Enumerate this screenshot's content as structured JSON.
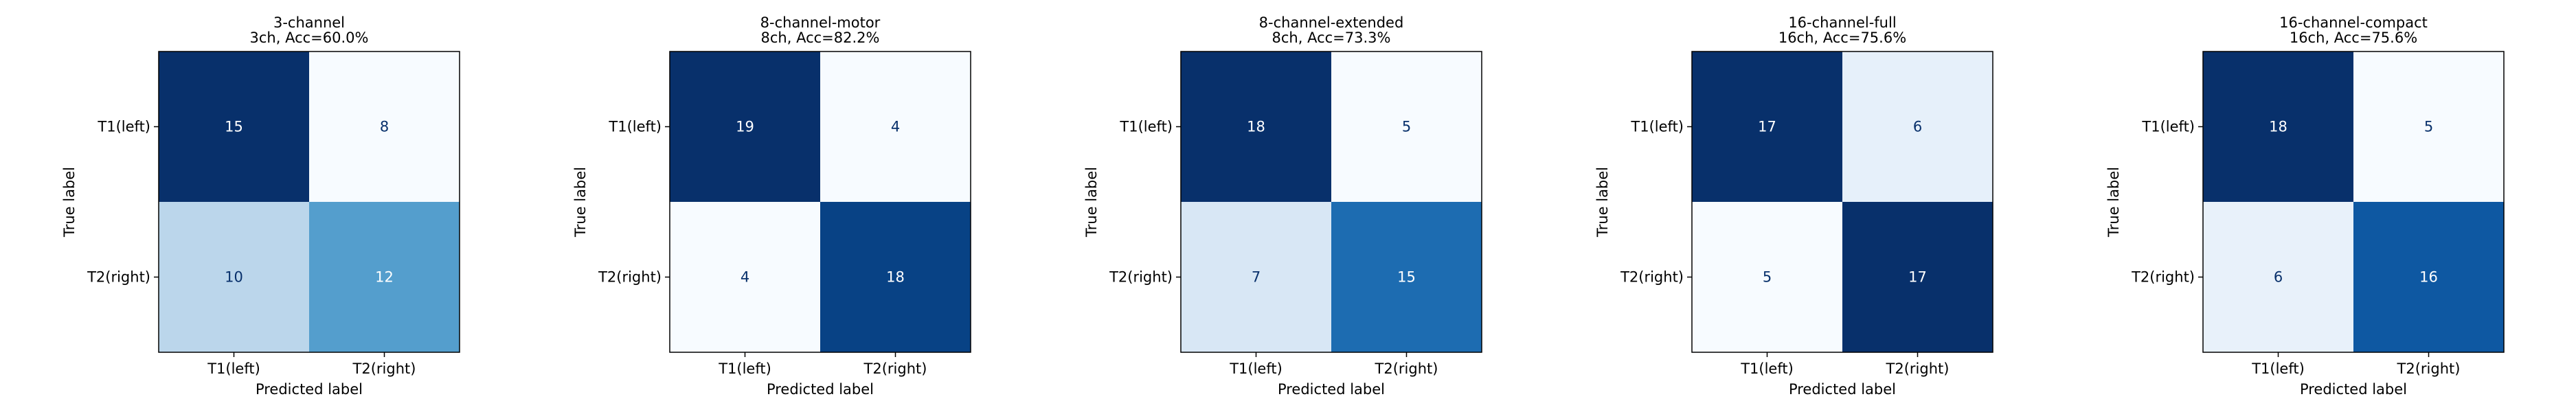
{
  "chart_data": [
    {
      "type": "heatmap",
      "title": "3-channel",
      "subtitle": "3ch, Acc=60.0%",
      "xlabel": "Predicted label",
      "ylabel": "True label",
      "x_ticks": [
        "T1(left)",
        "T2(right)"
      ],
      "y_ticks": [
        "T1(left)",
        "T2(right)"
      ],
      "matrix": [
        [
          15,
          8
        ],
        [
          10,
          12
        ]
      ],
      "colormap": "Blues",
      "grid": false
    },
    {
      "type": "heatmap",
      "title": "8-channel-motor",
      "subtitle": "8ch, Acc=82.2%",
      "xlabel": "Predicted label",
      "ylabel": "True label",
      "x_ticks": [
        "T1(left)",
        "T2(right)"
      ],
      "y_ticks": [
        "T1(left)",
        "T2(right)"
      ],
      "matrix": [
        [
          19,
          4
        ],
        [
          4,
          18
        ]
      ],
      "colormap": "Blues",
      "grid": false
    },
    {
      "type": "heatmap",
      "title": "8-channel-extended",
      "subtitle": "8ch, Acc=73.3%",
      "xlabel": "Predicted label",
      "ylabel": "True label",
      "x_ticks": [
        "T1(left)",
        "T2(right)"
      ],
      "y_ticks": [
        "T1(left)",
        "T2(right)"
      ],
      "matrix": [
        [
          18,
          5
        ],
        [
          7,
          15
        ]
      ],
      "colormap": "Blues",
      "grid": false
    },
    {
      "type": "heatmap",
      "title": "16-channel-full",
      "subtitle": "16ch, Acc=75.6%",
      "xlabel": "Predicted label",
      "ylabel": "True label",
      "x_ticks": [
        "T1(left)",
        "T2(right)"
      ],
      "y_ticks": [
        "T1(left)",
        "T2(right)"
      ],
      "matrix": [
        [
          17,
          6
        ],
        [
          5,
          17
        ]
      ],
      "colormap": "Blues",
      "grid": false
    },
    {
      "type": "heatmap",
      "title": "16-channel-compact",
      "subtitle": "16ch, Acc=75.6%",
      "xlabel": "Predicted label",
      "ylabel": "True label",
      "x_ticks": [
        "T1(left)",
        "T2(right)"
      ],
      "y_ticks": [
        "T1(left)",
        "T2(right)"
      ],
      "matrix": [
        [
          18,
          5
        ],
        [
          6,
          16
        ]
      ],
      "colormap": "Blues",
      "grid": false
    }
  ]
}
